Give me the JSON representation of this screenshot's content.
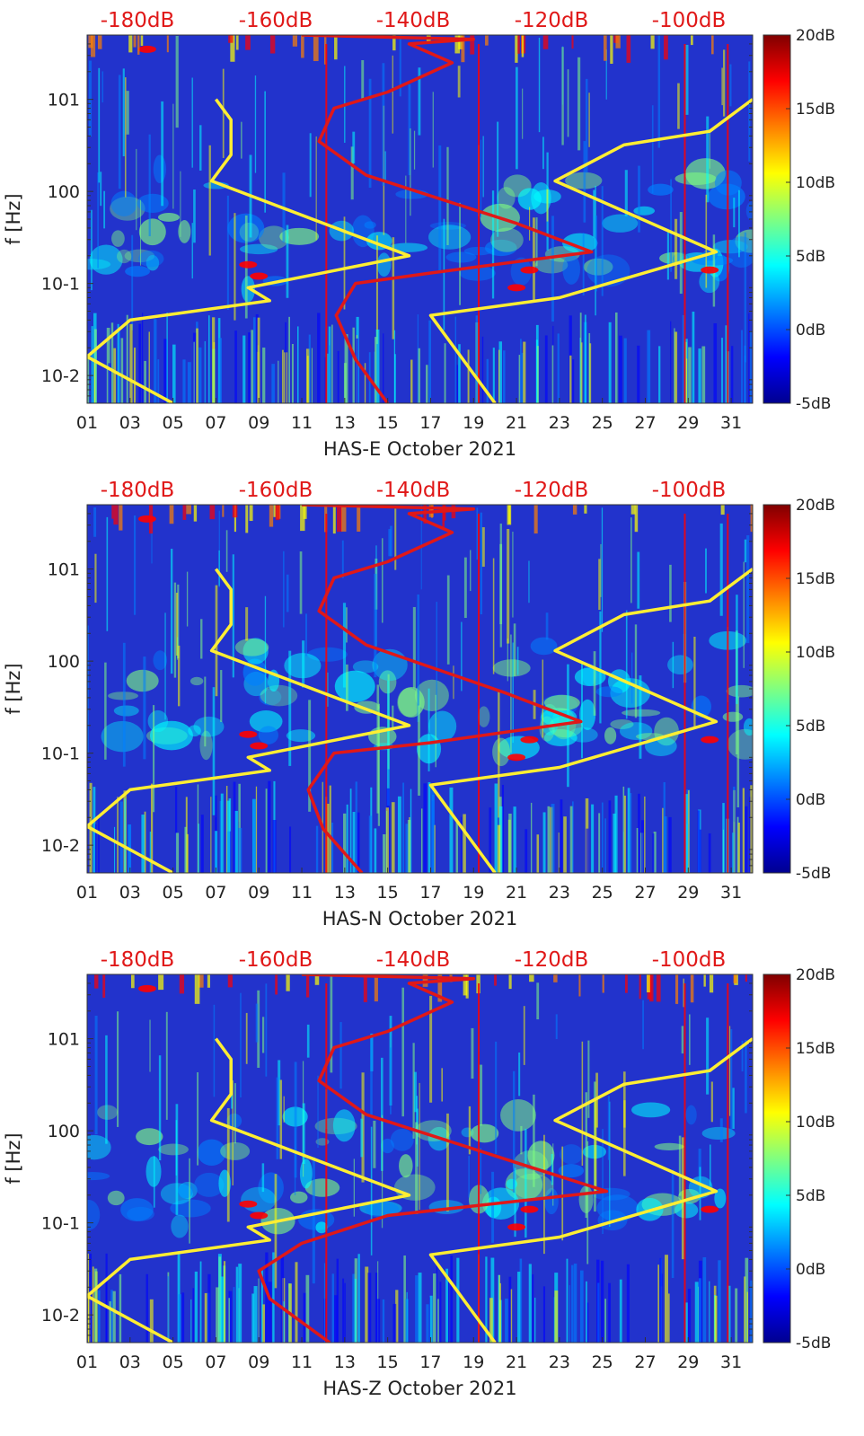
{
  "figure": {
    "colors": {
      "background": "#2233cc",
      "nlnm_line": "#ffee33",
      "station_line": "#e01818",
      "top_axis_text": "#e01818",
      "axis_text": "#222222"
    },
    "colormap": [
      "#00008f",
      "#0000ff",
      "#0080ff",
      "#00ffff",
      "#80ff80",
      "#ffff00",
      "#ff8000",
      "#ff0000",
      "#800000"
    ]
  },
  "chart_data": [
    {
      "type": "heatmap",
      "title": "",
      "xlabel": "HAS-E October 2021",
      "ylabel": "f [Hz]",
      "x_ticks": [
        "01",
        "03",
        "05",
        "07",
        "09",
        "11",
        "13",
        "15",
        "17",
        "19",
        "21",
        "23",
        "25",
        "27",
        "29",
        "31"
      ],
      "y_ticks": [
        "10-2",
        "10-1",
        "100",
        "101"
      ],
      "ylim_hz": [
        0.005,
        50
      ],
      "top_axis_labels": [
        "-180dB",
        "-160dB",
        "-140dB",
        "-120dB",
        "-100dB"
      ],
      "colorbar_labels": [
        "20dB",
        "15dB",
        "10dB",
        "5dB",
        "0dB",
        "-5dB"
      ],
      "colorbar_range_db": [
        -5,
        20
      ],
      "nlnm_curve": [
        {
          "day": 5.0,
          "f": 0.005
        },
        {
          "day": 1.0,
          "f": 0.016
        },
        {
          "day": 3.0,
          "f": 0.04
        },
        {
          "day": 9.5,
          "f": 0.065
        },
        {
          "day": 8.5,
          "f": 0.09
        },
        {
          "day": 16.0,
          "f": 0.2
        },
        {
          "day": 6.8,
          "f": 1.3
        },
        {
          "day": 7.7,
          "f": 2.5
        },
        {
          "day": 7.7,
          "f": 6.0
        },
        {
          "day": 7.0,
          "f": 10.0
        }
      ],
      "nhnm_curve": [
        {
          "day": 20.0,
          "f": 0.005
        },
        {
          "day": 17.0,
          "f": 0.045
        },
        {
          "day": 23.0,
          "f": 0.07
        },
        {
          "day": 30.3,
          "f": 0.22
        },
        {
          "day": 22.8,
          "f": 1.3
        },
        {
          "day": 26.0,
          "f": 3.2
        },
        {
          "day": 30.0,
          "f": 4.5
        },
        {
          "day": 32.0,
          "f": 10.0
        }
      ],
      "station_curve": [
        {
          "day": 15.0,
          "f": 0.005
        },
        {
          "day": 13.5,
          "f": 0.015
        },
        {
          "day": 12.6,
          "f": 0.045
        },
        {
          "day": 13.5,
          "f": 0.1
        },
        {
          "day": 17.0,
          "f": 0.13
        },
        {
          "day": 24.5,
          "f": 0.22
        },
        {
          "day": 21.0,
          "f": 0.45
        },
        {
          "day": 14.0,
          "f": 1.5
        },
        {
          "day": 11.8,
          "f": 3.5
        },
        {
          "day": 12.5,
          "f": 8.0
        },
        {
          "day": 15.0,
          "f": 12.0
        },
        {
          "day": 18.0,
          "f": 25.0
        },
        {
          "day": 16.0,
          "f": 40.0
        },
        {
          "day": 19.0,
          "f": 45.0
        },
        {
          "day": 11.0,
          "f": 50.0
        }
      ]
    },
    {
      "type": "heatmap",
      "title": "",
      "xlabel": "HAS-N October 2021",
      "ylabel": "f [Hz]",
      "x_ticks": [
        "01",
        "03",
        "05",
        "07",
        "09",
        "11",
        "13",
        "15",
        "17",
        "19",
        "21",
        "23",
        "25",
        "27",
        "29",
        "31"
      ],
      "y_ticks": [
        "10-2",
        "10-1",
        "100",
        "101"
      ],
      "ylim_hz": [
        0.005,
        50
      ],
      "top_axis_labels": [
        "-180dB",
        "-160dB",
        "-140dB",
        "-120dB",
        "-100dB"
      ],
      "colorbar_labels": [
        "20dB",
        "15dB",
        "10dB",
        "5dB",
        "0dB",
        "-5dB"
      ],
      "colorbar_range_db": [
        -5,
        20
      ],
      "nlnm_curve": [
        {
          "day": 5.0,
          "f": 0.005
        },
        {
          "day": 1.0,
          "f": 0.016
        },
        {
          "day": 3.0,
          "f": 0.04
        },
        {
          "day": 9.5,
          "f": 0.065
        },
        {
          "day": 8.5,
          "f": 0.09
        },
        {
          "day": 16.0,
          "f": 0.2
        },
        {
          "day": 6.8,
          "f": 1.3
        },
        {
          "day": 7.7,
          "f": 2.5
        },
        {
          "day": 7.7,
          "f": 6.0
        },
        {
          "day": 7.0,
          "f": 10.0
        }
      ],
      "nhnm_curve": [
        {
          "day": 20.0,
          "f": 0.005
        },
        {
          "day": 17.0,
          "f": 0.045
        },
        {
          "day": 23.0,
          "f": 0.07
        },
        {
          "day": 30.3,
          "f": 0.22
        },
        {
          "day": 22.8,
          "f": 1.3
        },
        {
          "day": 26.0,
          "f": 3.2
        },
        {
          "day": 30.0,
          "f": 4.5
        },
        {
          "day": 32.0,
          "f": 10.0
        }
      ],
      "station_curve": [
        {
          "day": 13.8,
          "f": 0.005
        },
        {
          "day": 12.0,
          "f": 0.015
        },
        {
          "day": 11.3,
          "f": 0.04
        },
        {
          "day": 12.5,
          "f": 0.1
        },
        {
          "day": 17.0,
          "f": 0.13
        },
        {
          "day": 24.0,
          "f": 0.22
        },
        {
          "day": 20.5,
          "f": 0.45
        },
        {
          "day": 14.0,
          "f": 1.5
        },
        {
          "day": 11.8,
          "f": 3.5
        },
        {
          "day": 12.5,
          "f": 8.0
        },
        {
          "day": 15.0,
          "f": 12.0
        },
        {
          "day": 18.0,
          "f": 25.0
        },
        {
          "day": 16.0,
          "f": 40.0
        },
        {
          "day": 19.0,
          "f": 45.0
        },
        {
          "day": 11.0,
          "f": 50.0
        }
      ]
    },
    {
      "type": "heatmap",
      "title": "",
      "xlabel": "HAS-Z October 2021",
      "ylabel": "f [Hz]",
      "x_ticks": [
        "01",
        "03",
        "05",
        "07",
        "09",
        "11",
        "13",
        "15",
        "17",
        "19",
        "21",
        "23",
        "25",
        "27",
        "29",
        "31"
      ],
      "y_ticks": [
        "10-2",
        "10-1",
        "100",
        "101"
      ],
      "ylim_hz": [
        0.005,
        50
      ],
      "top_axis_labels": [
        "-180dB",
        "-160dB",
        "-140dB",
        "-120dB",
        "-100dB"
      ],
      "colorbar_labels": [
        "20dB",
        "15dB",
        "10dB",
        "5dB",
        "0dB",
        "-5dB"
      ],
      "colorbar_range_db": [
        -5,
        20
      ],
      "nlnm_curve": [
        {
          "day": 5.0,
          "f": 0.005
        },
        {
          "day": 1.0,
          "f": 0.016
        },
        {
          "day": 3.0,
          "f": 0.04
        },
        {
          "day": 9.5,
          "f": 0.065
        },
        {
          "day": 8.5,
          "f": 0.09
        },
        {
          "day": 16.0,
          "f": 0.2
        },
        {
          "day": 6.8,
          "f": 1.3
        },
        {
          "day": 7.7,
          "f": 2.5
        },
        {
          "day": 7.7,
          "f": 6.0
        },
        {
          "day": 7.0,
          "f": 10.0
        }
      ],
      "nhnm_curve": [
        {
          "day": 20.0,
          "f": 0.005
        },
        {
          "day": 17.0,
          "f": 0.045
        },
        {
          "day": 23.0,
          "f": 0.07
        },
        {
          "day": 30.3,
          "f": 0.22
        },
        {
          "day": 22.8,
          "f": 1.3
        },
        {
          "day": 26.0,
          "f": 3.2
        },
        {
          "day": 30.0,
          "f": 4.5
        },
        {
          "day": 32.0,
          "f": 10.0
        }
      ],
      "station_curve": [
        {
          "day": 12.3,
          "f": 0.005
        },
        {
          "day": 9.5,
          "f": 0.015
        },
        {
          "day": 9.0,
          "f": 0.03
        },
        {
          "day": 11.0,
          "f": 0.06
        },
        {
          "day": 15.0,
          "f": 0.12
        },
        {
          "day": 25.2,
          "f": 0.22
        },
        {
          "day": 21.0,
          "f": 0.45
        },
        {
          "day": 14.0,
          "f": 1.5
        },
        {
          "day": 11.8,
          "f": 3.5
        },
        {
          "day": 12.5,
          "f": 8.0
        },
        {
          "day": 15.0,
          "f": 12.0
        },
        {
          "day": 18.0,
          "f": 25.0
        },
        {
          "day": 16.0,
          "f": 40.0
        },
        {
          "day": 19.0,
          "f": 45.0
        },
        {
          "day": 11.0,
          "f": 50.0
        }
      ]
    }
  ]
}
